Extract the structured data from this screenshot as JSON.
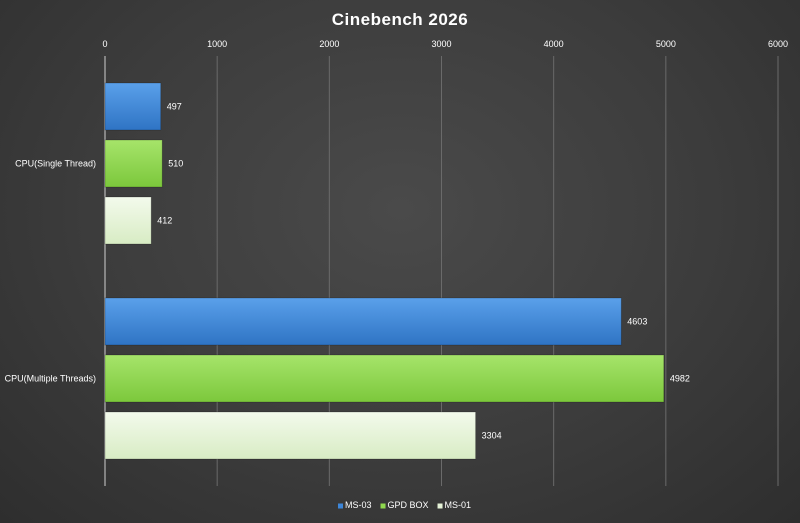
{
  "chart_data": {
    "type": "bar",
    "orientation": "horizontal",
    "title": "Cinebench 2026",
    "categories": [
      "CPU(Single Thread)",
      "CPU(Multiple Threads)"
    ],
    "series": [
      {
        "name": "MS-03",
        "values": [
          497,
          4603
        ],
        "color": "#3d86d8"
      },
      {
        "name": "GPD BOX",
        "values": [
          510,
          4982
        ],
        "color": "#8fd94e"
      },
      {
        "name": "MS-01",
        "values": [
          412,
          3304
        ],
        "color": "#e6f3d8"
      }
    ],
    "xlim": [
      0,
      6000
    ],
    "xticks": [
      0,
      1000,
      2000,
      3000,
      4000,
      5000,
      6000
    ],
    "xaxis_position": "top",
    "grid": true,
    "legend": "bottom",
    "data_labels": true
  }
}
